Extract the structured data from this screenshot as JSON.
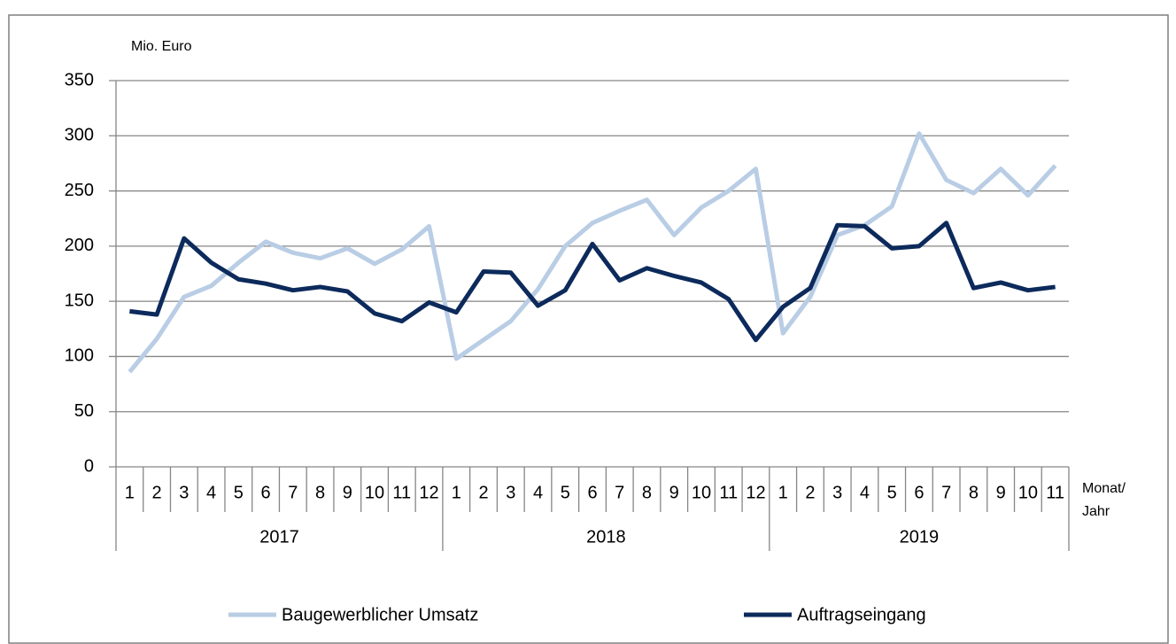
{
  "chart_data": {
    "type": "line",
    "y_label": "Mio. Euro",
    "x_label": [
      "Monat/",
      "Jahr"
    ],
    "categories": [
      "1",
      "2",
      "3",
      "4",
      "5",
      "6",
      "7",
      "8",
      "9",
      "10",
      "11",
      "12",
      "1",
      "2",
      "3",
      "4",
      "5",
      "6",
      "7",
      "8",
      "9",
      "10",
      "11",
      "12",
      "1",
      "2",
      "3",
      "4",
      "5",
      "6",
      "7",
      "8",
      "9",
      "10",
      "11"
    ],
    "years": [
      "2017",
      "2018",
      "2019"
    ],
    "series": [
      {
        "name": "Baugewerblicher Umsatz",
        "color": "#b9cde5",
        "values": [
          86,
          116,
          154,
          164,
          185,
          204,
          194,
          189,
          198,
          184,
          197,
          218,
          98,
          115,
          132,
          161,
          200,
          221,
          232,
          242,
          210,
          235,
          250,
          270,
          121,
          154,
          210,
          219,
          236,
          302,
          260,
          248,
          270,
          246,
          273
        ]
      },
      {
        "name": "Auftragseingang",
        "color": "#0c2a5b",
        "values": [
          141,
          138,
          207,
          185,
          170,
          166,
          160,
          163,
          159,
          139,
          132,
          149,
          140,
          177,
          176,
          146,
          160,
          202,
          169,
          180,
          173,
          167,
          152,
          115,
          145,
          162,
          219,
          218,
          198,
          200,
          221,
          162,
          167,
          160,
          163
        ]
      }
    ],
    "ylim": [
      0,
      350
    ],
    "yticks": [
      0,
      50,
      100,
      150,
      200,
      250,
      300,
      350
    ],
    "grid": true,
    "legend": "bottom"
  }
}
